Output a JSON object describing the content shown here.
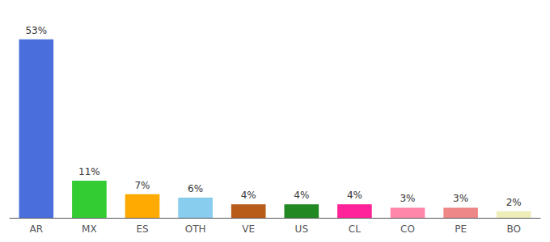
{
  "chart_data": {
    "type": "bar",
    "categories": [
      "AR",
      "MX",
      "ES",
      "OTH",
      "VE",
      "US",
      "CL",
      "CO",
      "PE",
      "BO"
    ],
    "values": [
      53,
      11,
      7,
      6,
      4,
      4,
      4,
      3,
      3,
      2
    ],
    "value_labels": [
      "53%",
      "11%",
      "7%",
      "6%",
      "4%",
      "4%",
      "4%",
      "3%",
      "3%",
      "2%"
    ],
    "colors": [
      "#4a6fdc",
      "#33cc33",
      "#ffaa00",
      "#88ccee",
      "#b85c1a",
      "#228822",
      "#ff2299",
      "#ff88aa",
      "#ee8888",
      "#eeeebb"
    ],
    "ylim": [
      0,
      58
    ],
    "grid": false,
    "data_labels": true,
    "tick_labels": "x"
  }
}
